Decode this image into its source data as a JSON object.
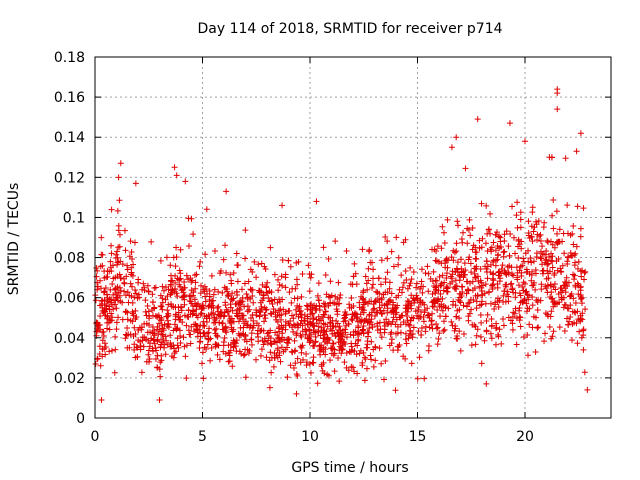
{
  "chart_data": {
    "type": "scatter",
    "title": "Day 114 of 2018, SRMTID for receiver p714",
    "xlabel": "GPS time / hours",
    "ylabel": "SRMTID / TECUs",
    "xlim": [
      0,
      24
    ],
    "ylim": [
      0,
      0.18
    ],
    "xticks": [
      "0",
      "5",
      "10",
      "15",
      "20"
    ],
    "xtick_values": [
      0,
      5,
      10,
      15,
      20
    ],
    "yticks": [
      "0",
      "0.02",
      "0.04",
      "0.06",
      "0.08",
      "0.1",
      "0.12",
      "0.14",
      "0.16",
      "0.18"
    ],
    "ytick_values": [
      0,
      0.02,
      0.04,
      0.06,
      0.08,
      0.1,
      0.12,
      0.14,
      0.16,
      0.18
    ],
    "grid": true,
    "marker": "plus",
    "colors": {
      "points": "#e00000",
      "grid": "#a0a0a0",
      "axes": "#000000"
    },
    "envelope": {
      "hours": [
        0,
        0.5,
        1,
        1.5,
        2,
        3,
        3.5,
        4,
        5,
        6,
        7,
        8,
        9,
        10,
        11,
        12,
        13,
        14,
        15,
        16,
        16.5,
        17,
        18,
        19,
        20,
        21,
        21.5,
        22,
        22.5,
        22.8
      ],
      "mean": [
        0.05,
        0.052,
        0.065,
        0.068,
        0.048,
        0.04,
        0.06,
        0.055,
        0.05,
        0.052,
        0.05,
        0.05,
        0.046,
        0.045,
        0.042,
        0.046,
        0.05,
        0.055,
        0.055,
        0.058,
        0.07,
        0.068,
        0.066,
        0.066,
        0.07,
        0.07,
        0.068,
        0.068,
        0.065,
        0.055
      ],
      "spread": [
        0.015,
        0.016,
        0.022,
        0.022,
        0.016,
        0.014,
        0.02,
        0.017,
        0.016,
        0.016,
        0.016,
        0.016,
        0.015,
        0.014,
        0.014,
        0.015,
        0.016,
        0.018,
        0.017,
        0.018,
        0.022,
        0.021,
        0.02,
        0.02,
        0.021,
        0.021,
        0.022,
        0.022,
        0.02,
        0.017
      ]
    },
    "peaks": [
      [
        1.2,
        0.127
      ],
      [
        1.1,
        0.12
      ],
      [
        1.9,
        0.117
      ],
      [
        3.7,
        0.125
      ],
      [
        3.8,
        0.121
      ],
      [
        4.2,
        0.118
      ],
      [
        3.0,
        0.009
      ],
      [
        0.3,
        0.009
      ],
      [
        6.1,
        0.113
      ],
      [
        8.7,
        0.106
      ],
      [
        10.3,
        0.108
      ],
      [
        16.6,
        0.135
      ],
      [
        16.8,
        0.14
      ],
      [
        17.8,
        0.149
      ],
      [
        19.3,
        0.147
      ],
      [
        20.0,
        0.138
      ],
      [
        21.5,
        0.164
      ],
      [
        21.5,
        0.162
      ],
      [
        21.5,
        0.154
      ],
      [
        22.6,
        0.142
      ],
      [
        22.4,
        0.133
      ],
      [
        18.2,
        0.017
      ],
      [
        22.9,
        0.014
      ]
    ],
    "n_points": 2300
  }
}
